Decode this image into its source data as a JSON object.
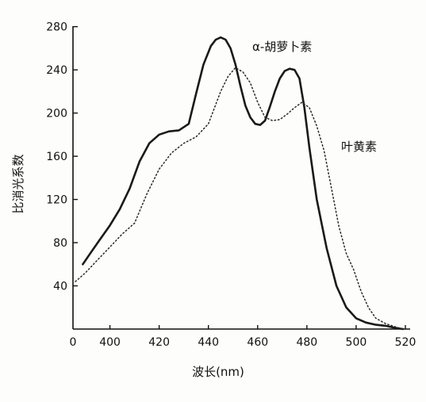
{
  "chart_data": {
    "type": "line",
    "xlabel": "波长(nm)",
    "ylabel": "比消光系数",
    "x_ticks": [
      "0",
      "400",
      "420",
      "440",
      "460",
      "480",
      "500",
      "520"
    ],
    "y_ticks": [
      "40",
      "80",
      "120",
      "160",
      "200",
      "240",
      "280"
    ],
    "xlim": [
      385,
      520
    ],
    "ylim": [
      0,
      290
    ],
    "grid": false,
    "series": [
      {
        "name": "α-胡萝卜素",
        "style": "solid",
        "color": "#1a1a1a",
        "x": [
          389,
          392,
          396,
          400,
          404,
          408,
          412,
          416,
          420,
          424,
          428,
          432,
          435,
          438,
          441,
          443,
          445,
          447,
          449,
          451,
          453,
          455,
          457,
          459,
          461,
          463,
          465,
          467,
          469,
          471,
          473,
          475,
          477,
          479,
          481,
          484,
          488,
          492,
          496,
          500,
          504,
          508,
          512,
          516,
          519
        ],
        "y": [
          60,
          70,
          83,
          96,
          111,
          130,
          155,
          172,
          180,
          183,
          184,
          190,
          218,
          245,
          262,
          268,
          270,
          268,
          260,
          245,
          225,
          207,
          196,
          190,
          189,
          193,
          206,
          220,
          232,
          239,
          241,
          240,
          232,
          205,
          168,
          120,
          75,
          40,
          20,
          10,
          6,
          4,
          3,
          1,
          0
        ]
      },
      {
        "name": "叶黄素",
        "style": "dotted",
        "color": "#2a2a2a",
        "x": [
          386,
          390,
          395,
          400,
          405,
          410,
          415,
          420,
          425,
          430,
          435,
          440,
          445,
          448,
          451,
          454,
          457,
          460,
          463,
          466,
          469,
          472,
          475,
          478,
          481,
          484,
          487,
          490,
          493,
          496,
          499,
          502,
          505,
          508,
          512,
          516,
          519
        ],
        "y": [
          44,
          52,
          64,
          76,
          88,
          98,
          125,
          148,
          163,
          172,
          178,
          190,
          220,
          234,
          242,
          238,
          228,
          210,
          196,
          193,
          194,
          199,
          205,
          210,
          205,
          188,
          165,
          130,
          95,
          70,
          55,
          35,
          20,
          10,
          5,
          2,
          0
        ]
      }
    ]
  }
}
